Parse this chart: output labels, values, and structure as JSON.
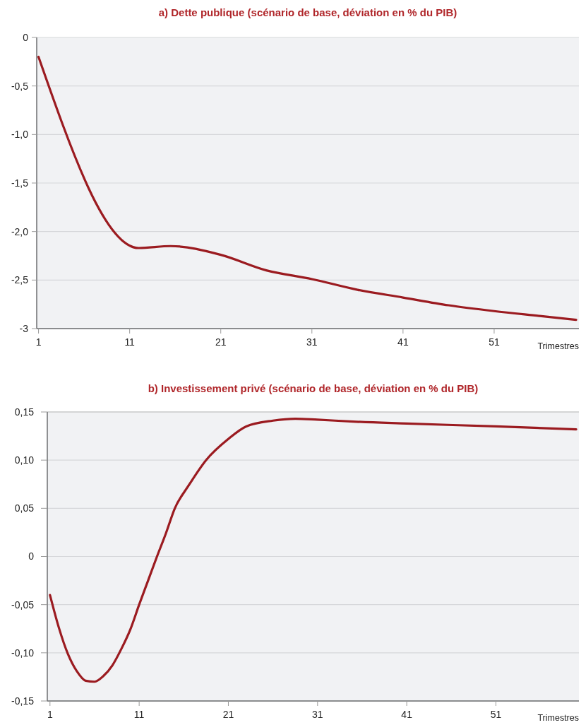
{
  "chart_data": [
    {
      "type": "line",
      "title": "a) Dette publique (scénario de base, déviation en % du PIB)",
      "xlabel": "Trimestres",
      "grid": "y",
      "line_style": "solid",
      "x": [
        1,
        12,
        15.5,
        21,
        26,
        31,
        36,
        41,
        46,
        51,
        56,
        60
      ],
      "series": [
        {
          "color": "#9b1b20",
          "values": [
            -0.2,
            -2.17,
            -2.15,
            -2.24,
            -2.4,
            -2.49,
            -2.6,
            -2.68,
            -2.76,
            -2.82,
            -2.87,
            -2.91
          ]
        }
      ],
      "xlim": [
        0.8,
        60.3
      ],
      "xticks": [
        1,
        11,
        21,
        31,
        41,
        51
      ],
      "ylim": [
        -3,
        0
      ],
      "yticks": [
        {
          "value": -3,
          "label": "-3"
        },
        {
          "value": -2.5,
          "label": "-2,5"
        },
        {
          "value": -2,
          "label": "-2,0"
        },
        {
          "value": -1.5,
          "label": "-1,5"
        },
        {
          "value": -1,
          "label": "-1,0"
        },
        {
          "value": -0.5,
          "label": "-0,5"
        },
        0
      ]
    },
    {
      "type": "line",
      "title": "b) Investissement privé (scénario de base, déviation en % du PIB)",
      "xlabel": "Trimestres",
      "grid": "y",
      "line_style": "solid",
      "x": [
        1,
        2,
        3,
        4,
        5,
        6,
        7,
        8,
        9,
        10,
        11,
        12,
        13,
        14,
        15,
        16.5,
        18.5,
        21,
        23,
        26,
        28.5,
        31,
        35,
        41,
        51,
        60
      ],
      "series": [
        {
          "color": "#9b1b20",
          "values": [
            -0.04,
            -0.074,
            -0.101,
            -0.119,
            -0.129,
            -0.13,
            -0.124,
            -0.113,
            -0.096,
            -0.076,
            -0.05,
            -0.025,
            0,
            0.024,
            0.05,
            0.073,
            0.1,
            0.122,
            0.135,
            0.141,
            0.143,
            0.142,
            0.14,
            0.138,
            0.135,
            0.132
          ]
        }
      ],
      "xlim": [
        0.7,
        60.3
      ],
      "xticks": [
        1,
        11,
        21,
        31,
        41,
        51
      ],
      "ylim": [
        -0.15,
        0.15
      ],
      "yticks": [
        {
          "value": -0.15,
          "label": "-0,15"
        },
        {
          "value": -0.1,
          "label": "-0,10"
        },
        {
          "value": -0.05,
          "label": "-0,05"
        },
        0,
        {
          "value": 0.05,
          "label": "0,05"
        },
        {
          "value": 0.1,
          "label": "0,10"
        },
        {
          "value": 0.15,
          "label": "0,15"
        }
      ]
    }
  ]
}
